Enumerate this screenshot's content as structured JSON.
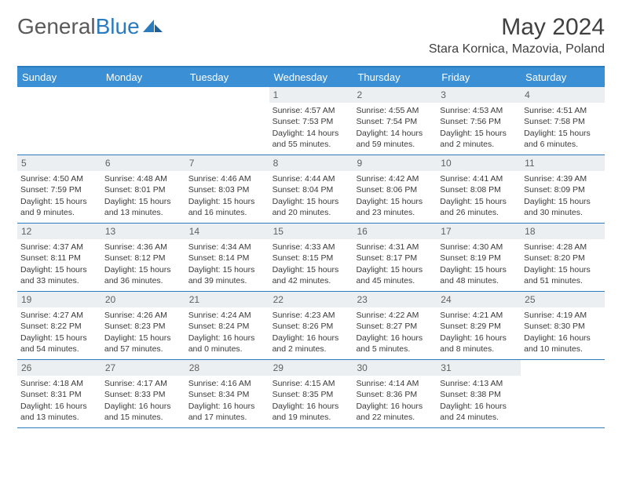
{
  "logo": {
    "text1": "General",
    "text2": "Blue"
  },
  "title": "May 2024",
  "location": "Stara Kornica, Mazovia, Poland",
  "colors": {
    "header_bg": "#3b8fd4",
    "border": "#2b7bbf",
    "daynum_bg": "#eceff1",
    "text": "#3a3a3a"
  },
  "weekdays": [
    "Sunday",
    "Monday",
    "Tuesday",
    "Wednesday",
    "Thursday",
    "Friday",
    "Saturday"
  ],
  "weeks": [
    [
      {
        "n": "",
        "empty": true
      },
      {
        "n": "",
        "empty": true
      },
      {
        "n": "",
        "empty": true
      },
      {
        "n": "1",
        "sr": "Sunrise: 4:57 AM",
        "ss": "Sunset: 7:53 PM",
        "dl": "Daylight: 14 hours and 55 minutes."
      },
      {
        "n": "2",
        "sr": "Sunrise: 4:55 AM",
        "ss": "Sunset: 7:54 PM",
        "dl": "Daylight: 14 hours and 59 minutes."
      },
      {
        "n": "3",
        "sr": "Sunrise: 4:53 AM",
        "ss": "Sunset: 7:56 PM",
        "dl": "Daylight: 15 hours and 2 minutes."
      },
      {
        "n": "4",
        "sr": "Sunrise: 4:51 AM",
        "ss": "Sunset: 7:58 PM",
        "dl": "Daylight: 15 hours and 6 minutes."
      }
    ],
    [
      {
        "n": "5",
        "sr": "Sunrise: 4:50 AM",
        "ss": "Sunset: 7:59 PM",
        "dl": "Daylight: 15 hours and 9 minutes."
      },
      {
        "n": "6",
        "sr": "Sunrise: 4:48 AM",
        "ss": "Sunset: 8:01 PM",
        "dl": "Daylight: 15 hours and 13 minutes."
      },
      {
        "n": "7",
        "sr": "Sunrise: 4:46 AM",
        "ss": "Sunset: 8:03 PM",
        "dl": "Daylight: 15 hours and 16 minutes."
      },
      {
        "n": "8",
        "sr": "Sunrise: 4:44 AM",
        "ss": "Sunset: 8:04 PM",
        "dl": "Daylight: 15 hours and 20 minutes."
      },
      {
        "n": "9",
        "sr": "Sunrise: 4:42 AM",
        "ss": "Sunset: 8:06 PM",
        "dl": "Daylight: 15 hours and 23 minutes."
      },
      {
        "n": "10",
        "sr": "Sunrise: 4:41 AM",
        "ss": "Sunset: 8:08 PM",
        "dl": "Daylight: 15 hours and 26 minutes."
      },
      {
        "n": "11",
        "sr": "Sunrise: 4:39 AM",
        "ss": "Sunset: 8:09 PM",
        "dl": "Daylight: 15 hours and 30 minutes."
      }
    ],
    [
      {
        "n": "12",
        "sr": "Sunrise: 4:37 AM",
        "ss": "Sunset: 8:11 PM",
        "dl": "Daylight: 15 hours and 33 minutes."
      },
      {
        "n": "13",
        "sr": "Sunrise: 4:36 AM",
        "ss": "Sunset: 8:12 PM",
        "dl": "Daylight: 15 hours and 36 minutes."
      },
      {
        "n": "14",
        "sr": "Sunrise: 4:34 AM",
        "ss": "Sunset: 8:14 PM",
        "dl": "Daylight: 15 hours and 39 minutes."
      },
      {
        "n": "15",
        "sr": "Sunrise: 4:33 AM",
        "ss": "Sunset: 8:15 PM",
        "dl": "Daylight: 15 hours and 42 minutes."
      },
      {
        "n": "16",
        "sr": "Sunrise: 4:31 AM",
        "ss": "Sunset: 8:17 PM",
        "dl": "Daylight: 15 hours and 45 minutes."
      },
      {
        "n": "17",
        "sr": "Sunrise: 4:30 AM",
        "ss": "Sunset: 8:19 PM",
        "dl": "Daylight: 15 hours and 48 minutes."
      },
      {
        "n": "18",
        "sr": "Sunrise: 4:28 AM",
        "ss": "Sunset: 8:20 PM",
        "dl": "Daylight: 15 hours and 51 minutes."
      }
    ],
    [
      {
        "n": "19",
        "sr": "Sunrise: 4:27 AM",
        "ss": "Sunset: 8:22 PM",
        "dl": "Daylight: 15 hours and 54 minutes."
      },
      {
        "n": "20",
        "sr": "Sunrise: 4:26 AM",
        "ss": "Sunset: 8:23 PM",
        "dl": "Daylight: 15 hours and 57 minutes."
      },
      {
        "n": "21",
        "sr": "Sunrise: 4:24 AM",
        "ss": "Sunset: 8:24 PM",
        "dl": "Daylight: 16 hours and 0 minutes."
      },
      {
        "n": "22",
        "sr": "Sunrise: 4:23 AM",
        "ss": "Sunset: 8:26 PM",
        "dl": "Daylight: 16 hours and 2 minutes."
      },
      {
        "n": "23",
        "sr": "Sunrise: 4:22 AM",
        "ss": "Sunset: 8:27 PM",
        "dl": "Daylight: 16 hours and 5 minutes."
      },
      {
        "n": "24",
        "sr": "Sunrise: 4:21 AM",
        "ss": "Sunset: 8:29 PM",
        "dl": "Daylight: 16 hours and 8 minutes."
      },
      {
        "n": "25",
        "sr": "Sunrise: 4:19 AM",
        "ss": "Sunset: 8:30 PM",
        "dl": "Daylight: 16 hours and 10 minutes."
      }
    ],
    [
      {
        "n": "26",
        "sr": "Sunrise: 4:18 AM",
        "ss": "Sunset: 8:31 PM",
        "dl": "Daylight: 16 hours and 13 minutes."
      },
      {
        "n": "27",
        "sr": "Sunrise: 4:17 AM",
        "ss": "Sunset: 8:33 PM",
        "dl": "Daylight: 16 hours and 15 minutes."
      },
      {
        "n": "28",
        "sr": "Sunrise: 4:16 AM",
        "ss": "Sunset: 8:34 PM",
        "dl": "Daylight: 16 hours and 17 minutes."
      },
      {
        "n": "29",
        "sr": "Sunrise: 4:15 AM",
        "ss": "Sunset: 8:35 PM",
        "dl": "Daylight: 16 hours and 19 minutes."
      },
      {
        "n": "30",
        "sr": "Sunrise: 4:14 AM",
        "ss": "Sunset: 8:36 PM",
        "dl": "Daylight: 16 hours and 22 minutes."
      },
      {
        "n": "31",
        "sr": "Sunrise: 4:13 AM",
        "ss": "Sunset: 8:38 PM",
        "dl": "Daylight: 16 hours and 24 minutes."
      },
      {
        "n": "",
        "empty": true
      }
    ]
  ]
}
